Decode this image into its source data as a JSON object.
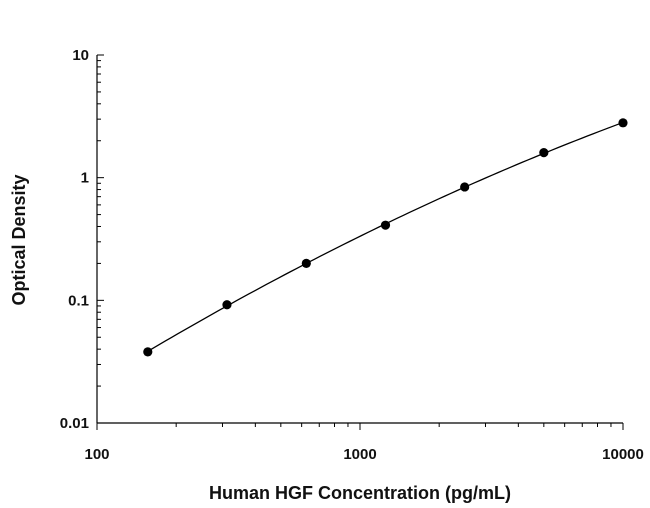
{
  "chart_data": {
    "type": "scatter",
    "title": "",
    "xlabel": "Human HGF Concentration (pg/mL)",
    "ylabel": "Optical Density",
    "x_scale": "log",
    "y_scale": "log",
    "xlim": [
      100,
      10000
    ],
    "ylim": [
      0.01,
      10
    ],
    "x_ticks": [
      "100",
      "1000",
      "10000"
    ],
    "y_ticks": [
      "0.01",
      "0.1",
      "1",
      "10"
    ],
    "grid": false,
    "legend": "none",
    "fit_curve": true,
    "series": [
      {
        "x": [
          156,
          312,
          625,
          1250,
          2500,
          5000,
          10000
        ],
        "y": [
          0.038,
          0.092,
          0.2,
          0.41,
          0.84,
          1.6,
          2.8
        ]
      }
    ],
    "colors": {
      "marker": "#000000",
      "line": "#000000",
      "axis": "#000000"
    }
  }
}
